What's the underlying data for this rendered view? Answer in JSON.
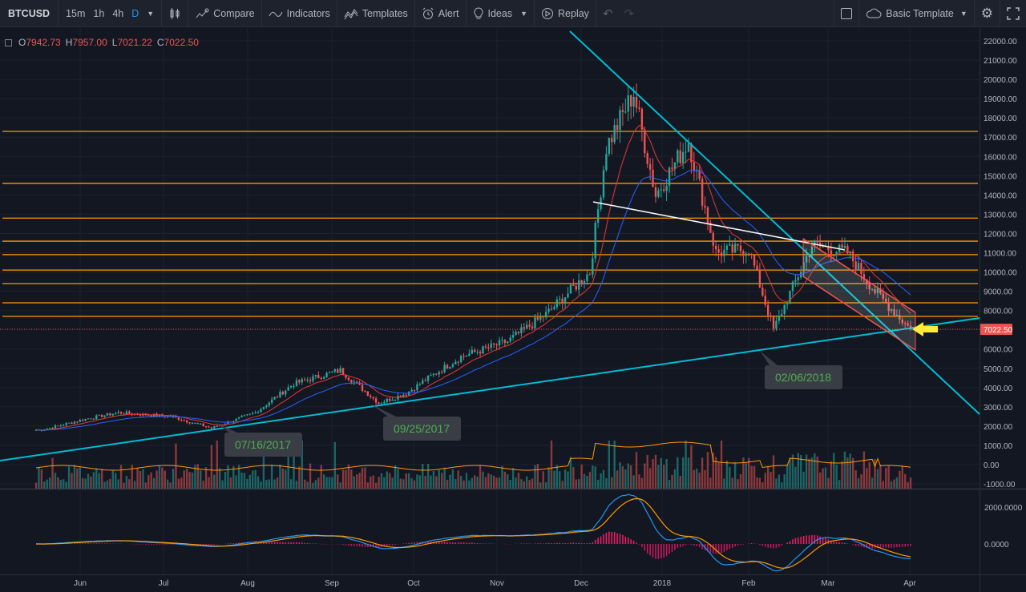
{
  "toolbar": {
    "symbol": "BTCUSD",
    "timeframes": [
      "15m",
      "1h",
      "4h",
      "D"
    ],
    "active_timeframe": "D",
    "compare": "Compare",
    "indicators": "Indicators",
    "templates": "Templates",
    "alert": "Alert",
    "ideas": "Ideas",
    "replay": "Replay",
    "template_name": "Basic Template"
  },
  "ohlc": {
    "o_label": "O",
    "o": "7942.73",
    "h_label": "H",
    "h": "7957.00",
    "l_label": "L",
    "l": "7021.22",
    "c_label": "C",
    "c": "7022.50"
  },
  "price_axis": [
    "22000.00",
    "21000.00",
    "20000.00",
    "19000.00",
    "18000.00",
    "17000.00",
    "16000.00",
    "15000.00",
    "14000.00",
    "13000.00",
    "12000.00",
    "11000.00",
    "10000.00",
    "9000.00",
    "8000.00",
    "7000.00",
    "6000.00",
    "5000.00",
    "4000.00",
    "3000.00",
    "2000.00",
    "1000.00",
    "0.00",
    "-1000.00"
  ],
  "last_price": "7022.50",
  "macd_axis": [
    "2000.0000",
    "0.0000"
  ],
  "time_axis": [
    "Jun",
    "Jul",
    "Aug",
    "Sep",
    "Oct",
    "Nov",
    "Dec",
    "2018",
    "Feb",
    "Mar",
    "Apr"
  ],
  "annotations": [
    "07/16/2017",
    "09/25/2017",
    "02/06/2018"
  ],
  "colors": {
    "up": "#26a69a",
    "down": "#ef5350",
    "trend": "#00bcd4",
    "level": "#ff9800",
    "ema_red": "#e53935",
    "ema_blue": "#2962ff",
    "accent": "#2196f3",
    "arrow": "#ffeb3b"
  },
  "chart_data": {
    "type": "candlestick",
    "series": [
      {
        "name": "BTCUSD",
        "x": [
          "2017-05-15",
          "2017-06-01",
          "2017-06-12",
          "2017-07-01",
          "2017-07-16",
          "2017-08-01",
          "2017-08-15",
          "2017-09-01",
          "2017-09-15",
          "2017-09-25",
          "2017-10-01",
          "2017-10-15",
          "2017-11-01",
          "2017-11-15",
          "2017-12-01",
          "2017-12-07",
          "2017-12-17",
          "2017-12-25",
          "2018-01-06",
          "2018-01-16",
          "2018-01-28",
          "2018-02-06",
          "2018-02-20",
          "2018-03-05",
          "2018-03-15",
          "2018-03-28"
        ],
        "close": [
          1800,
          2400,
          2700,
          2500,
          1900,
          2700,
          4200,
          4900,
          3200,
          3700,
          4300,
          5600,
          6400,
          7800,
          10000,
          16500,
          19300,
          14000,
          16800,
          11000,
          11200,
          7000,
          11400,
          11000,
          9000,
          7022
        ]
      }
    ],
    "horizontal_levels": [
      17300,
      14600,
      12800,
      11600,
      10900,
      10100,
      9400,
      8400,
      7700
    ],
    "ylim": [
      -1000,
      22000
    ]
  }
}
